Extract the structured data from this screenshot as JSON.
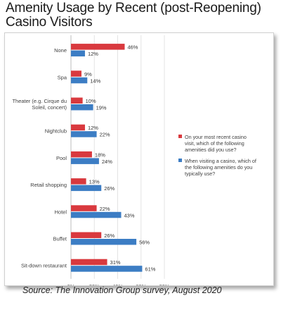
{
  "title": "Amenity Usage by Recent (post-Reopening) Casino Visitors",
  "source": "Source: The Innovation Group survey, August 2020",
  "colors": {
    "series1": "#d9393e",
    "series2": "#3c7dc4"
  },
  "chart_data": {
    "type": "bar",
    "orientation": "horizontal",
    "title": "Amenity Usage by Recent (post-Reopening) Casino Visitors",
    "categories": [
      "None",
      "Spa",
      "Theater (e.g. Cirque du Soleil, concert)",
      "Nightclub",
      "Pool",
      "Retail shopping",
      "Hotel",
      "Buffet",
      "Sit-down restaurant"
    ],
    "category_lines": [
      [
        "None"
      ],
      [
        "Spa"
      ],
      [
        "Theater (e.g. Cirque du",
        "Soleil, concert)"
      ],
      [
        "Nightclub"
      ],
      [
        "Pool"
      ],
      [
        "Retail shopping"
      ],
      [
        "Hotel"
      ],
      [
        "Buffet"
      ],
      [
        "Sit-down restaurant"
      ]
    ],
    "series": [
      {
        "name": "On your most recent casino visit, which of the following amenities did you use?",
        "name_lines": [
          "On your most recent casino",
          "visit, which of the following",
          "amenities did you use?"
        ],
        "values": [
          46,
          9,
          10,
          12,
          18,
          13,
          22,
          26,
          31
        ],
        "labels": [
          "46%",
          "9%",
          "10%",
          "12%",
          "18%",
          "13%",
          "22%",
          "26%",
          "31%"
        ]
      },
      {
        "name": "When visiting a casino, which of the following amenities do you typically use?",
        "name_lines": [
          "When visiting a casino, which of",
          "the following amenities do you",
          "typically use?"
        ],
        "values": [
          12,
          14,
          19,
          22,
          24,
          26,
          43,
          56,
          61
        ],
        "labels": [
          "12%",
          "14%",
          "19%",
          "22%",
          "24%",
          "26%",
          "43%",
          "56%",
          "61%"
        ]
      }
    ],
    "xlim": [
      0,
      80
    ],
    "xticks": [
      "0%",
      "20%",
      "40%",
      "60%",
      "80%"
    ],
    "grid": true,
    "legend": "right"
  }
}
